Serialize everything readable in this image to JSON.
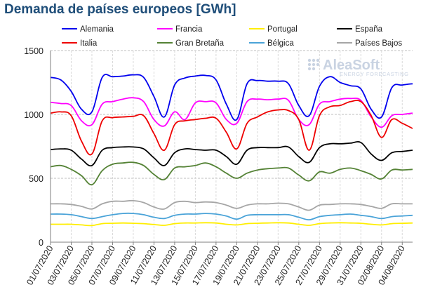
{
  "chart_data": {
    "type": "line",
    "title": "Demanda de países europeos [GWh]",
    "xlabel": "",
    "ylabel": "",
    "ylim": [
      0,
      1500
    ],
    "yticks": [
      "0",
      "500",
      "1000",
      "1500"
    ],
    "grid": true,
    "legend_position": "top",
    "logo": {
      "name": "AleaSoft",
      "tagline": "ENERGY FORECASTING"
    },
    "x": [
      "01/07/2020",
      "02/07/2020",
      "03/07/2020",
      "04/07/2020",
      "05/07/2020",
      "06/07/2020",
      "07/07/2020",
      "08/07/2020",
      "09/07/2020",
      "10/07/2020",
      "11/07/2020",
      "12/07/2020",
      "13/07/2020",
      "14/07/2020",
      "15/07/2020",
      "16/07/2020",
      "17/07/2020",
      "18/07/2020",
      "19/07/2020",
      "20/07/2020",
      "21/07/2020",
      "22/07/2020",
      "23/07/2020",
      "24/07/2020",
      "25/07/2020",
      "26/07/2020",
      "27/07/2020",
      "28/07/2020",
      "29/07/2020",
      "30/07/2020",
      "31/07/2020",
      "01/08/2020",
      "02/08/2020",
      "03/08/2020",
      "04/08/2020",
      "05/08/2020"
    ],
    "xtick_labels": [
      "01/07/2020",
      "03/07/2020",
      "05/07/2020",
      "07/07/2020",
      "09/07/2020",
      "11/07/2020",
      "13/07/2020",
      "15/07/2020",
      "17/07/2020",
      "19/07/2020",
      "21/07/2020",
      "23/07/2020",
      "25/07/2020",
      "27/07/2020",
      "29/07/2020",
      "31/07/2020",
      "02/08/2020",
      "04/08/2020"
    ],
    "series": [
      {
        "name": "Alemania",
        "color": "#0000ee",
        "values": [
          1290,
          1270,
          1180,
          1040,
          1020,
          1290,
          1295,
          1300,
          1310,
          1290,
          1140,
          980,
          1230,
          1285,
          1300,
          1305,
          1270,
          1080,
          960,
          1240,
          1265,
          1260,
          1260,
          1240,
          1070,
          990,
          1220,
          1295,
          1250,
          1225,
          1200,
          1040,
          980,
          1210,
          1230,
          1240
        ]
      },
      {
        "name": "Francia",
        "color": "#ff00ff",
        "values": [
          1095,
          1085,
          1070,
          950,
          920,
          1080,
          1100,
          1120,
          1130,
          1100,
          960,
          910,
          1020,
          960,
          1090,
          1100,
          1090,
          960,
          930,
          1100,
          1120,
          1115,
          1120,
          1110,
          960,
          920,
          1080,
          1100,
          1120,
          1125,
          1110,
          980,
          900,
          990,
          1000,
          1010
        ]
      },
      {
        "name": "Portugal",
        "color": "#ffee00",
        "values": [
          140,
          140,
          140,
          135,
          130,
          145,
          148,
          150,
          148,
          145,
          138,
          132,
          145,
          150,
          150,
          152,
          150,
          140,
          135,
          145,
          148,
          150,
          152,
          150,
          140,
          132,
          145,
          150,
          152,
          150,
          148,
          140,
          135,
          145,
          148,
          150
        ]
      },
      {
        "name": "España",
        "color": "#000000",
        "values": [
          725,
          730,
          720,
          650,
          600,
          720,
          740,
          745,
          745,
          730,
          660,
          600,
          700,
          730,
          725,
          720,
          720,
          670,
          610,
          720,
          740,
          740,
          740,
          745,
          670,
          625,
          740,
          770,
          770,
          775,
          780,
          690,
          640,
          700,
          710,
          720
        ]
      },
      {
        "name": "Italia",
        "color": "#ee0000",
        "values": [
          1010,
          1020,
          990,
          790,
          690,
          950,
          975,
          980,
          985,
          990,
          850,
          720,
          920,
          950,
          960,
          970,
          970,
          860,
          730,
          930,
          980,
          1020,
          1035,
          1030,
          960,
          720,
          990,
          1060,
          1070,
          1100,
          1100,
          990,
          820,
          960,
          930,
          890
        ]
      },
      {
        "name": "Gran Bretaña",
        "color": "#548235",
        "values": [
          590,
          600,
          570,
          520,
          450,
          560,
          610,
          620,
          625,
          600,
          530,
          490,
          580,
          590,
          600,
          620,
          590,
          540,
          500,
          540,
          565,
          575,
          580,
          580,
          525,
          480,
          550,
          540,
          570,
          580,
          560,
          530,
          495,
          565,
          565,
          570
        ]
      },
      {
        "name": "Bélgica",
        "color": "#4aa3d8",
        "values": [
          220,
          220,
          215,
          200,
          185,
          200,
          215,
          225,
          225,
          215,
          195,
          185,
          210,
          220,
          220,
          225,
          220,
          205,
          180,
          210,
          215,
          215,
          215,
          215,
          195,
          175,
          200,
          210,
          215,
          220,
          210,
          200,
          185,
          200,
          205,
          210
        ]
      },
      {
        "name": "Países Bajos",
        "color": "#a6a6a6",
        "values": [
          300,
          300,
          295,
          280,
          260,
          300,
          320,
          320,
          325,
          310,
          275,
          260,
          310,
          320,
          310,
          315,
          310,
          290,
          265,
          290,
          300,
          300,
          305,
          300,
          275,
          250,
          290,
          295,
          300,
          300,
          295,
          280,
          265,
          300,
          300,
          300
        ]
      }
    ]
  }
}
